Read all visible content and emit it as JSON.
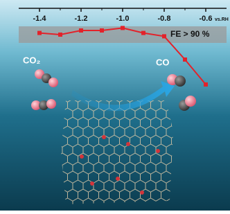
{
  "chart_data": {
    "type": "line",
    "x": [
      -1.4,
      -1.3,
      -1.2,
      -1.1,
      -1.0,
      -0.9,
      -0.8,
      -0.7,
      -0.6
    ],
    "series": [
      {
        "color": "#e3222a",
        "values": [
          96,
          95,
          97.5,
          97.5,
          99,
          96,
          94,
          80,
          65
        ]
      }
    ],
    "xlim": [
      -1.5,
      -0.5
    ],
    "xticks": [
      -1.4,
      -1.2,
      {
        "value": -1,
        "label": "-1.0"
      },
      -0.8,
      -0.6
    ],
    "x_label": "vs.RH",
    "ylim": [
      60,
      100
    ],
    "band": {
      "range": [
        90,
        100
      ],
      "label": "FE > 90 %"
    },
    "annotations": [
      "CO₂",
      "CO"
    ]
  }
}
